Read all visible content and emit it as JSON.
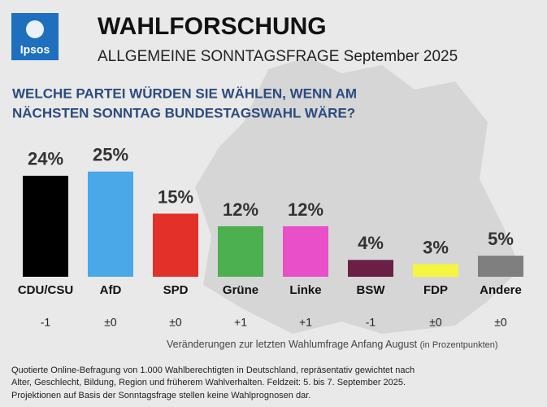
{
  "chart_data": {
    "type": "bar",
    "logo": "Ipsos",
    "title": "WAHLFORSCHUNG",
    "subtitle": "ALLGEMEINE SONNTAGSFRAGE September 2025",
    "question": [
      "WELCHE PARTEI WÜRDEN SIE WÄHLEN, WENN AM",
      "NÄCHSTEN SONNTAG BUNDESTAGSWAHL WÄRE?"
    ],
    "categories": [
      "CDU/CSU",
      "AfD",
      "SPD",
      "Grüne",
      "Linke",
      "BSW",
      "FDP",
      "Andere"
    ],
    "values": [
      24,
      25,
      15,
      12,
      12,
      4,
      3,
      5
    ],
    "value_labels": [
      "24%",
      "25%",
      "15%",
      "12%",
      "12%",
      "4%",
      "3%",
      "5%"
    ],
    "colors": [
      "#000000",
      "#4aa8e8",
      "#e3312a",
      "#4caf50",
      "#e94fc9",
      "#6b1f45",
      "#f6f53f",
      "#7f7f7f"
    ],
    "changes": [
      "-1",
      "±0",
      "±0",
      "+1",
      "+1",
      "-1",
      "±0",
      "±0"
    ],
    "changes_note": "Veränderungen zur letzten Wahlumfrage Anfang August",
    "changes_unit": "(in Prozentpunkten)",
    "footnote": [
      "Quotierte Online-Befragung von 1.000 Wahlberechtigten in Deutschland, repräsentativ gewichtet nach",
      "Alter, Geschlecht, Bildung, Region und früherem Wahlverhalten. Feldzeit: 5. bis 7. September 2025.",
      "Projektionen auf Basis der Sonntagsfrage stellen keine Wahlprognosen dar."
    ]
  }
}
